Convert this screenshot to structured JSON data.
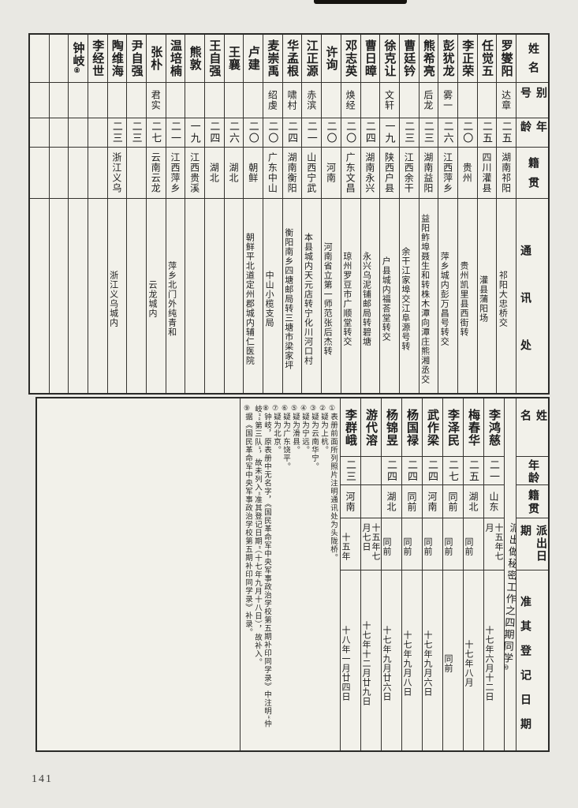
{
  "page": {
    "number": "141"
  },
  "colors": {
    "paper": "#f2f1ea",
    "ink": "#1d1d1d",
    "border": "#34322e"
  },
  "top_table": {
    "headers": {
      "name": "姓名",
      "alias": "别号",
      "age": "年龄",
      "native": "籍贯",
      "address": "通讯处"
    },
    "people": [
      {
        "name": "罗燮阳",
        "mark": "",
        "alias": "达章",
        "age": "二五",
        "native": "湖南祁阳",
        "address": "祁阳大忠桥交"
      },
      {
        "name": "任觉五",
        "mark": "",
        "alias": "",
        "age": "二五",
        "native": "四川灌县",
        "address": "灌县蒲阳场"
      },
      {
        "name": "李正荣",
        "mark": "",
        "alias": "",
        "age": "二〇",
        "native": "贵州",
        "address": "贵州凯里县西街转"
      },
      {
        "name": "彭犹龙",
        "mark": "",
        "alias": "雾一",
        "age": "二六",
        "native": "江西萍乡",
        "address": "萍乡城内彭万昌号转交"
      },
      {
        "name": "熊希亮",
        "mark": "",
        "alias": "后龙",
        "age": "二三",
        "native": "湖南益阳",
        "address": "益阳鲊埠聂生和转株木潭向潭庄熊湘丞交"
      },
      {
        "name": "曹廷钤",
        "mark": "",
        "alias": "",
        "age": "二三",
        "native": "江西余干",
        "address": "余干江家埠交江阜源号转"
      },
      {
        "name": "徐克让",
        "mark": "",
        "alias": "文轩",
        "age": "一九",
        "native": "陕西户县",
        "address": "户县城内福荅堂转交"
      },
      {
        "name": "曹日暲",
        "mark": "",
        "alias": "",
        "age": "二四",
        "native": "湖南永兴",
        "address": "永兴乌泥铺邮局转碧塘"
      },
      {
        "name": "邓志英",
        "mark": "",
        "alias": "焕经",
        "age": "二〇",
        "native": "广东文昌",
        "address": "琼州罗豆市广顺堂转交"
      },
      {
        "name": "许询",
        "mark": "",
        "alias": "",
        "age": "二〇",
        "native": "河南",
        "address": "河南省立第一师范张后杰转"
      },
      {
        "name": "江正源",
        "mark": "",
        "alias": "赤滨",
        "age": "二一",
        "native": "山西宁武",
        "address": "本县城内天元店转宁化川河口村"
      },
      {
        "name": "华孟根",
        "mark": "",
        "alias": "啸村",
        "age": "二四",
        "native": "湖南衡阳",
        "address": "衡阳南乡四塘邮局转三塘市梁家坪"
      },
      {
        "name": "麦崇禹",
        "mark": "",
        "alias": "绍虔",
        "age": "二〇",
        "native": "广东中山",
        "address": "中山小榄支局"
      },
      {
        "name": "卢建",
        "mark": "",
        "alias": "",
        "age": "二〇",
        "native": "朝鲜",
        "address": "朝鲜平北道定州郡城内辅仁医院"
      },
      {
        "name": "王襄",
        "mark": "",
        "alias": "",
        "age": "二六",
        "native": "湖北",
        "address": ""
      },
      {
        "name": "王自强",
        "mark": "",
        "alias": "",
        "age": "二四",
        "native": "湖北",
        "address": ""
      },
      {
        "name": "熊敦",
        "mark": "",
        "alias": "",
        "age": "一九",
        "native": "江西贵溪",
        "address": ""
      },
      {
        "name": "温培楠",
        "mark": "",
        "alias": "",
        "age": "二一",
        "native": "江西萍乡",
        "address": "萍乡北门外纯青和"
      },
      {
        "name": "张朴",
        "mark": "",
        "alias": "君实",
        "age": "二七",
        "native": "云南云龙",
        "address": "云龙城内"
      },
      {
        "name": "尹自强",
        "mark": "",
        "alias": "",
        "age": "二三",
        "native": "",
        "address": ""
      },
      {
        "name": "陶维海",
        "mark": "",
        "alias": "",
        "age": "二三",
        "native": "浙江义乌",
        "address": "浙江义乌城内"
      },
      {
        "name": "李经世",
        "mark": "",
        "alias": "",
        "age": "",
        "native": "",
        "address": ""
      },
      {
        "name": "钟岐",
        "mark": "⑧",
        "alias": "",
        "age": "",
        "native": "",
        "address": ""
      },
      {
        "name": "",
        "mark": "",
        "alias": "",
        "age": "",
        "native": "",
        "address": ""
      },
      {
        "name": "",
        "mark": "",
        "alias": "",
        "age": "",
        "native": "",
        "address": ""
      }
    ]
  },
  "bottom_table": {
    "headers": {
      "name": "姓名",
      "age": "年龄",
      "native": "籍贯",
      "sent": "派出日期",
      "registered": "准其登记日期"
    },
    "title": "派出做秘密工作之四期同学",
    "title_mark": "⑩",
    "people": [
      {
        "name": "李鸿慈",
        "age": "二一",
        "native": "山东",
        "sent": "十五年七月",
        "registered": "十七年六月十二日"
      },
      {
        "name": "梅春华",
        "age": "二五",
        "native": "湖北",
        "sent": "同前",
        "registered": "十七年八月"
      },
      {
        "name": "李泽民",
        "age": "二七",
        "native": "同前",
        "sent": "同前",
        "registered": "同前"
      },
      {
        "name": "武作梁",
        "age": "二四",
        "native": "河南",
        "sent": "同前",
        "registered": "十七年九月六日"
      },
      {
        "name": "杨国禄",
        "age": "二四",
        "native": "同前",
        "sent": "同前",
        "registered": "十七年九月八日"
      },
      {
        "name": "杨锦昱",
        "age": "二四",
        "native": "湖北",
        "sent": "同前",
        "registered": "十七年九月廿六日"
      },
      {
        "name": "游代溶",
        "age": "",
        "native": "",
        "sent": "十五年七月七日",
        "registered": "十七年十二月廿九日"
      },
      {
        "name": "李群峨",
        "age": "二三",
        "native": "河南",
        "sent": "十五年",
        "registered": "十八年一月廿四日"
      }
    ],
    "notes": [
      {
        "mark": "①",
        "text": "表册前面所列照片注明通讯处为头陇桥。"
      },
      {
        "mark": "②",
        "text": "疑为上杭。"
      },
      {
        "mark": "③",
        "text": "疑为云南华宁。"
      },
      {
        "mark": "④",
        "text": "疑为宁远。"
      },
      {
        "mark": "⑤",
        "text": "疑为滑县。"
      },
      {
        "mark": "⑥",
        "text": "疑为广东饶平。"
      },
      {
        "mark": "⑦",
        "text": "疑为北京。"
      },
      {
        "mark": "⑧",
        "text": "钟岐，原表册中无名字，《国民革命军中央军事政治学校第五期补印同学录》中注明“仲岐”“第三队”，故未列入“准其登记日期”（十七年九月十八日），故补入。"
      },
      {
        "mark": "⑨",
        "text": "据《国民革命军中央军事政治学校第五期补印同学录》补录。"
      }
    ]
  }
}
